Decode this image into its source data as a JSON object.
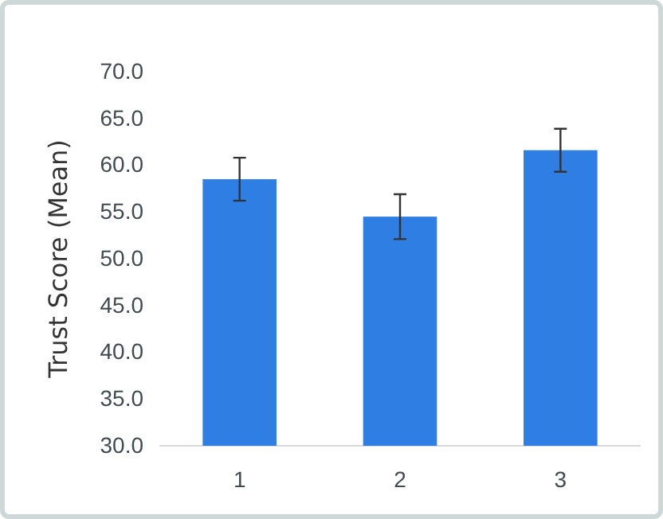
{
  "chart_data": {
    "type": "bar",
    "ylabel": "Trust Score (Mean)",
    "categories": [
      "1",
      "2",
      "3"
    ],
    "values": [
      58.5,
      54.5,
      61.6
    ],
    "errors": [
      2.3,
      2.4,
      2.3
    ],
    "color": "#2f7ee3",
    "ylim": [
      30,
      70
    ],
    "yticks": [
      {
        "value": 30,
        "label": "30.0"
      },
      {
        "value": 35,
        "label": "35.0"
      },
      {
        "value": 40,
        "label": "40.0"
      },
      {
        "value": 45,
        "label": "45.0"
      },
      {
        "value": 50,
        "label": "50.0"
      },
      {
        "value": 55,
        "label": "55.0"
      },
      {
        "value": 60,
        "label": "60.0"
      },
      {
        "value": 65,
        "label": "65.0"
      },
      {
        "value": 70,
        "label": "70.0"
      }
    ],
    "grid": false
  }
}
